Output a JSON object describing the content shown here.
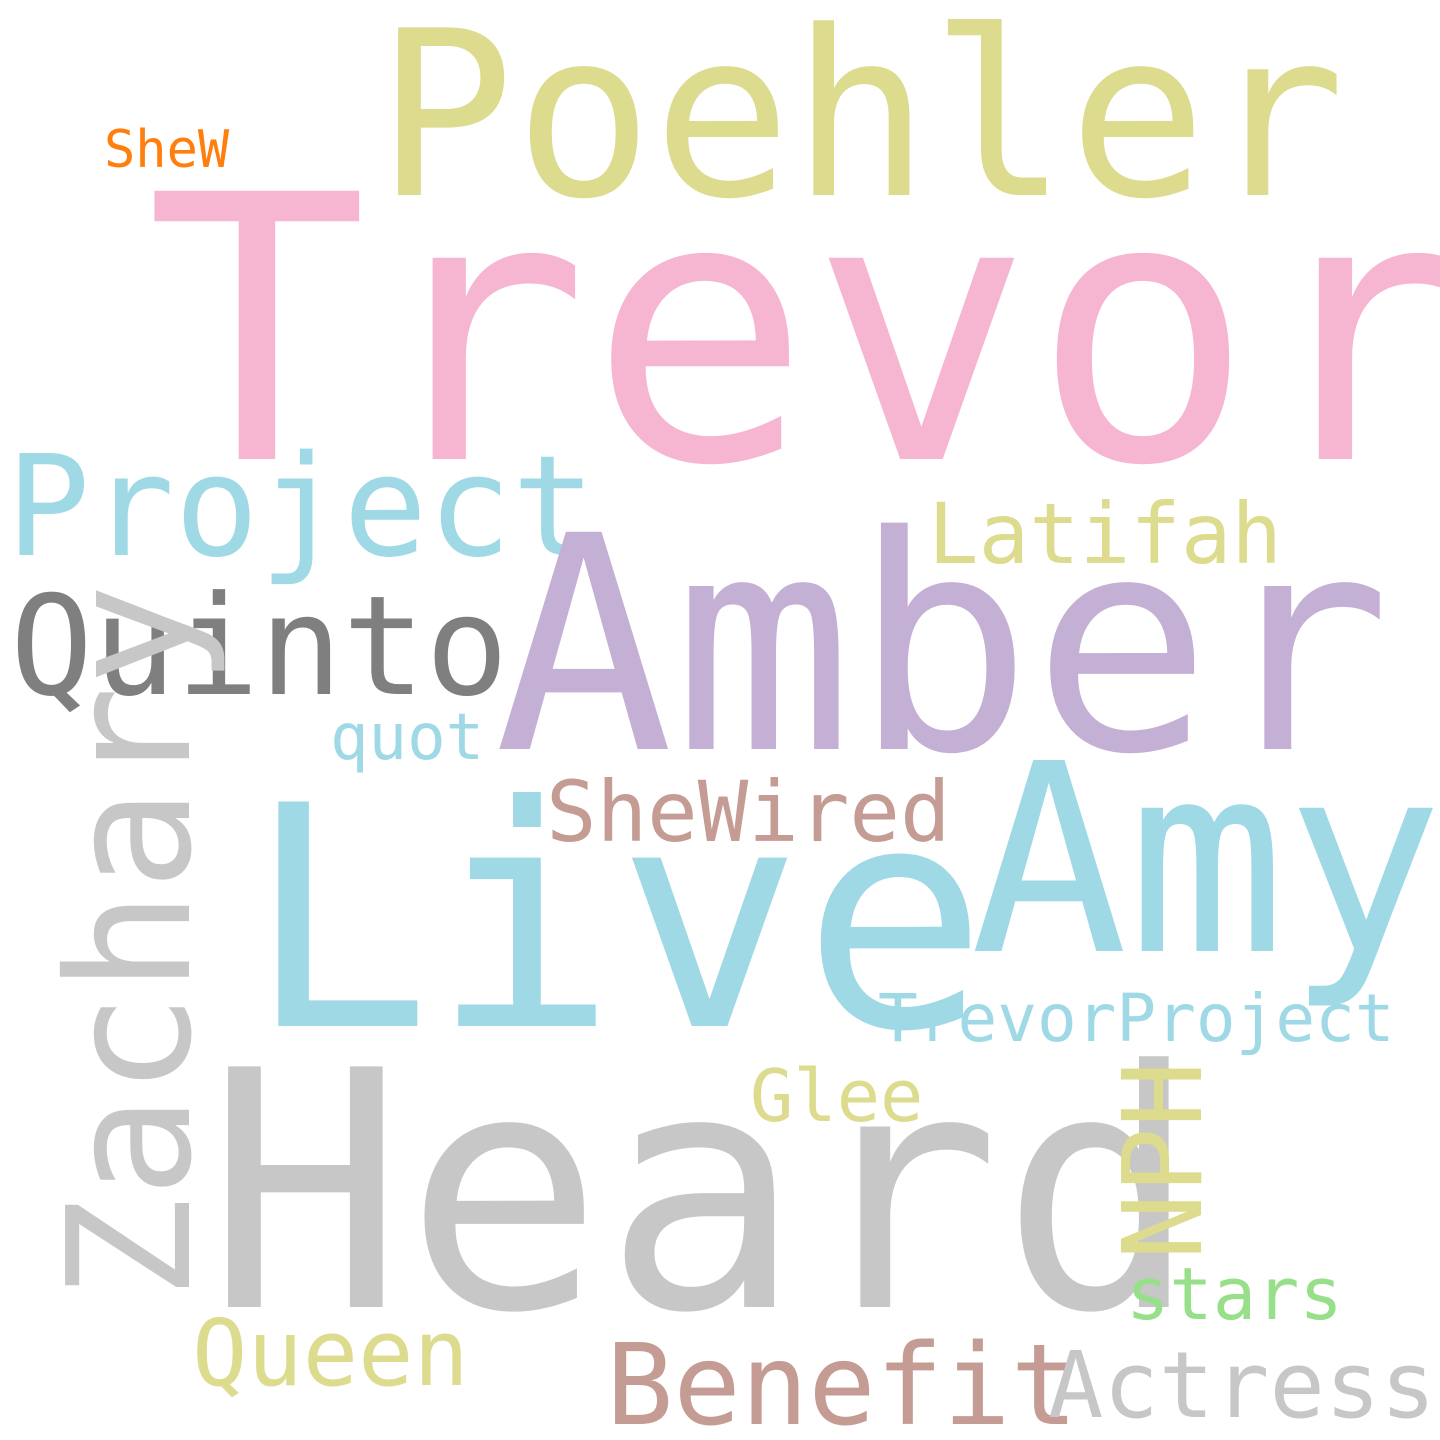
{
  "words": [
    {
      "text": "Poehler",
      "color": "#dcdb8e"
    },
    {
      "text": "Trevor",
      "color": "#f6b6d2"
    },
    {
      "text": "SheW",
      "color": "#ff7f0e"
    },
    {
      "text": "Project",
      "color": "#9fd9e6"
    },
    {
      "text": "Latifah",
      "color": "#dcdb8e"
    },
    {
      "text": "Amber",
      "color": "#c5b0d5"
    },
    {
      "text": "Quinto",
      "color": "#7f7f7f"
    },
    {
      "text": "quot",
      "color": "#9fd9e6"
    },
    {
      "text": "Amy",
      "color": "#9fd9e6"
    },
    {
      "text": "SheWired",
      "color": "#c49c94"
    },
    {
      "text": "Live",
      "color": "#9fd9e6"
    },
    {
      "text": "Zachary",
      "color": "#c7c7c7"
    },
    {
      "text": "TrevorProject",
      "color": "#9fd9e6"
    },
    {
      "text": "Glee",
      "color": "#dcdb8e"
    },
    {
      "text": "Heard",
      "color": "#c7c7c7"
    },
    {
      "text": "NPH",
      "color": "#dcdb8e"
    },
    {
      "text": "stars",
      "color": "#98df8a"
    },
    {
      "text": "Queen",
      "color": "#dcdb8e"
    },
    {
      "text": "Benefit",
      "color": "#c49c94"
    },
    {
      "text": "Actress",
      "color": "#c7c7c7"
    }
  ]
}
